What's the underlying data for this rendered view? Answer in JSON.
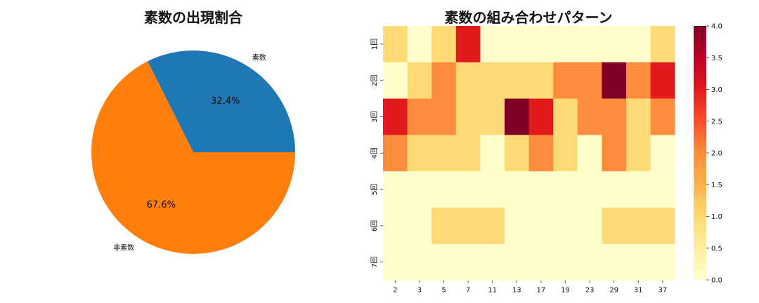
{
  "chart_data": [
    {
      "type": "pie",
      "title": "素数の出現割合",
      "labels": [
        "素数",
        "非素数"
      ],
      "values": [
        32.4,
        67.6
      ],
      "autopct": [
        "32.4%",
        "67.6%"
      ],
      "colors": [
        "#1f77b4",
        "#ff7f0e"
      ]
    },
    {
      "type": "heatmap",
      "title": "素数の組み合わせパターン",
      "x": [
        "2",
        "3",
        "5",
        "7",
        "11",
        "13",
        "17",
        "19",
        "23",
        "29",
        "31",
        "37"
      ],
      "y": [
        "1回",
        "2回",
        "3回",
        "4回",
        "5回",
        "6回",
        "7回"
      ],
      "values": [
        [
          1,
          0,
          1,
          3,
          0,
          0,
          0,
          0,
          0,
          0,
          0,
          1
        ],
        [
          0,
          1,
          2,
          1,
          1,
          1,
          1,
          2,
          2,
          4,
          2,
          3
        ],
        [
          3,
          2,
          2,
          1,
          1,
          4,
          3,
          1,
          2,
          2,
          1,
          2
        ],
        [
          2,
          1,
          1,
          1,
          0,
          1,
          2,
          1,
          0,
          2,
          1,
          0
        ],
        [
          0,
          0,
          0,
          0,
          0,
          0,
          0,
          0,
          0,
          0,
          0,
          0
        ],
        [
          0,
          0,
          1,
          1,
          1,
          0,
          0,
          0,
          0,
          1,
          1,
          1
        ],
        [
          0,
          0,
          0,
          0,
          0,
          0,
          0,
          0,
          0,
          0,
          0,
          0
        ]
      ],
      "colorbar": {
        "min": 0,
        "max": 4,
        "ticks": [
          "0.0",
          "0.5",
          "1.0",
          "1.5",
          "2.0",
          "2.5",
          "3.0",
          "3.5",
          "4.0"
        ],
        "colormap": "YlOrRd"
      }
    }
  ]
}
